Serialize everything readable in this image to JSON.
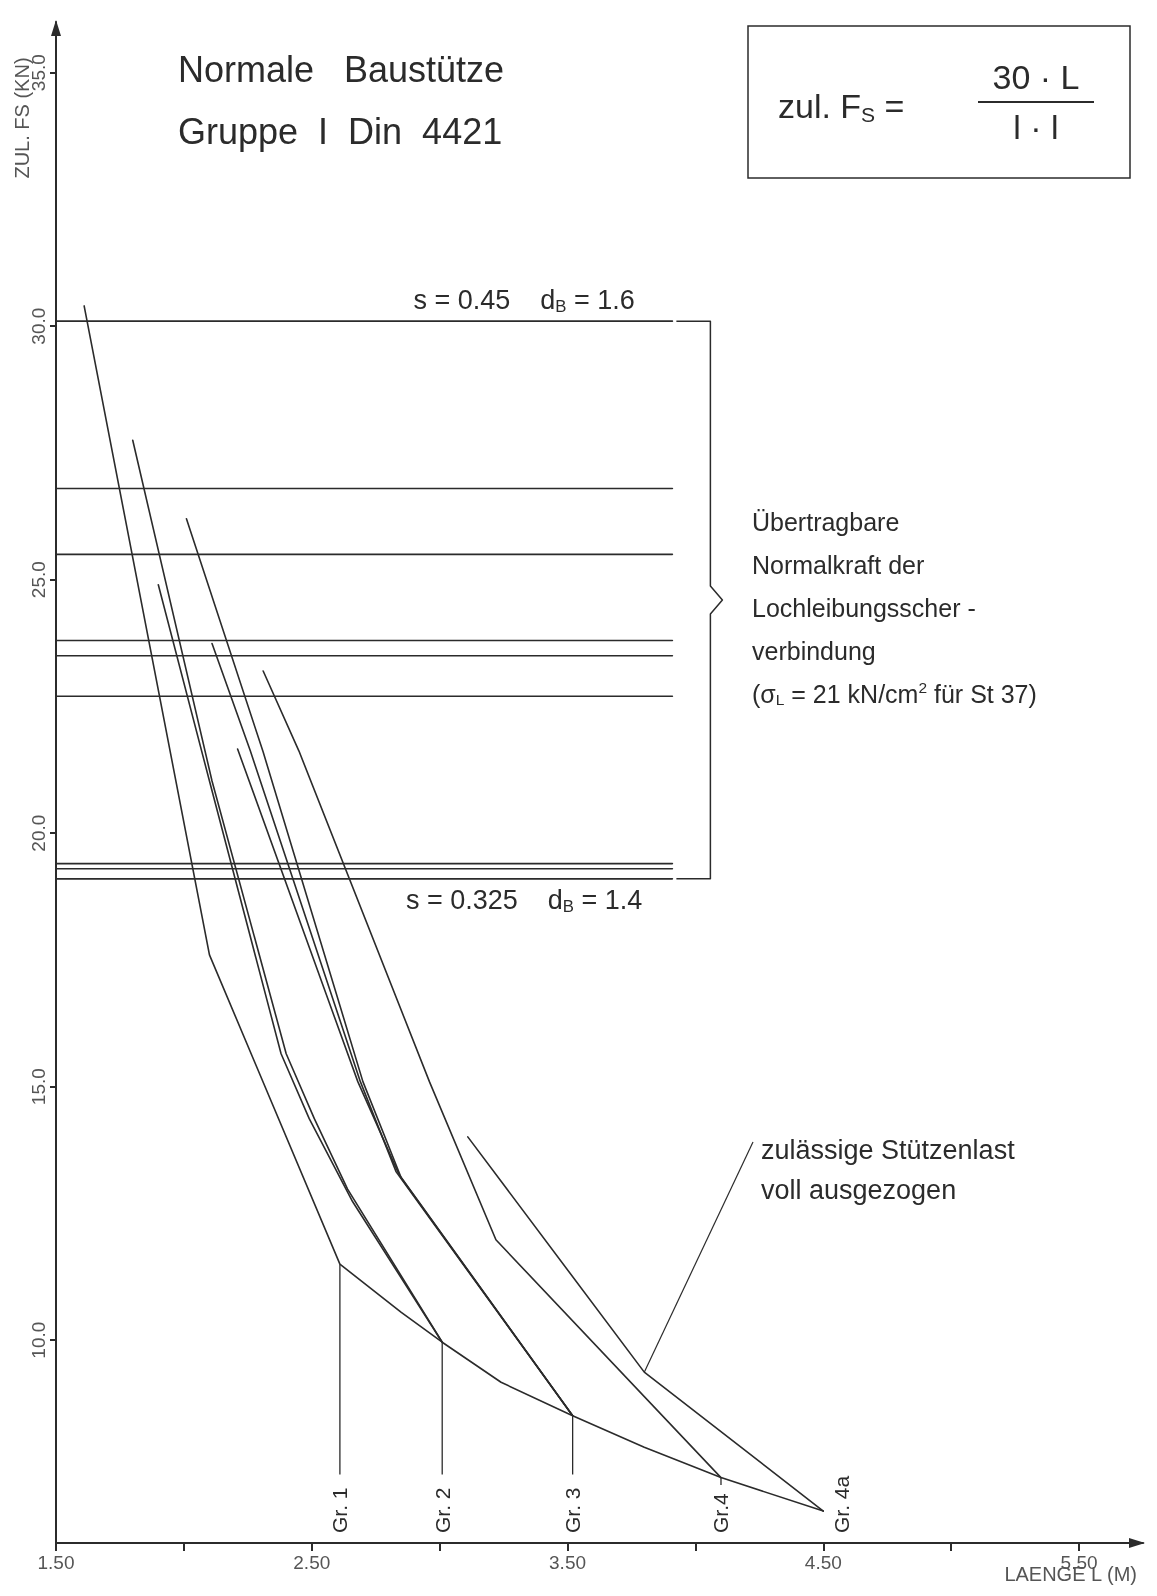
{
  "chart_data": {
    "type": "line",
    "title": "Normale   Baustütze",
    "subtitle": "Gruppe  I  Din  4421",
    "xlabel": "LAENGE L (M)",
    "ylabel": "ZUL. FS (KN)",
    "xlim": [
      1.5,
      5.75
    ],
    "ylim": [
      6,
      36
    ],
    "xticks": [
      {
        "value": 1.5,
        "label": "1.50"
      },
      {
        "value": 2,
        "label": null
      },
      {
        "value": 2.5,
        "label": "2.50"
      },
      {
        "value": 3,
        "label": null
      },
      {
        "value": 3.5,
        "label": "3.50"
      },
      {
        "value": 4,
        "label": null
      },
      {
        "value": 4.5,
        "label": "4.50"
      },
      {
        "value": 5,
        "label": null
      },
      {
        "value": 5.5,
        "label": "5.50"
      }
    ],
    "yticks": [
      {
        "value": 10,
        "label": "10.0"
      },
      {
        "value": 15,
        "label": "15.0"
      },
      {
        "value": 20,
        "label": "20.0"
      },
      {
        "value": 25,
        "label": "25.0"
      },
      {
        "value": 30,
        "label": "30.0"
      },
      {
        "value": 35,
        "label": "35.0"
      }
    ],
    "grid": false,
    "marker": "none",
    "line_style": "solid",
    "series": [
      {
        "color": "#2b2b2b",
        "x": [
          1.61,
          2.1,
          2.61,
          2.85,
          3.01,
          3.24,
          3.52,
          3.8,
          4.1,
          4.5
        ],
        "values": [
          30.4,
          17.6,
          11.5,
          10.55,
          9.96,
          9.17,
          8.51,
          7.89,
          7.29,
          6.63
        ]
      },
      {
        "color": "#2b2b2b",
        "x": [
          1.8,
          2.11,
          2.4,
          2.51,
          2.64,
          3.01
        ],
        "values": [
          27.75,
          21.03,
          15.65,
          14.37,
          12.98,
          9.96
        ]
      },
      {
        "color": "#2b2b2b",
        "x": [
          1.9,
          2.1,
          2.38,
          2.49,
          2.66,
          3.01
        ],
        "values": [
          24.9,
          21.03,
          15.65,
          14.37,
          12.73,
          9.96
        ]
      },
      {
        "color": "#2b2b2b",
        "x": [
          2.01,
          2.31,
          2.7,
          2.85,
          3.52
        ],
        "values": [
          26.2,
          21.6,
          15.1,
          13.2,
          8.51
        ]
      },
      {
        "color": "#2b2b2b",
        "x": [
          2.11,
          2.26,
          2.69,
          2.83,
          3.52
        ],
        "values": [
          23.74,
          21.62,
          15.1,
          13.32,
          8.51
        ]
      },
      {
        "color": "#2b2b2b",
        "x": [
          2.21,
          2.68,
          2.84,
          3.52
        ],
        "values": [
          21.66,
          15.1,
          13.28,
          8.51
        ]
      },
      {
        "color": "#2b2b2b",
        "x": [
          2.31,
          2.45,
          2.96,
          3.22,
          4.1
        ],
        "values": [
          23.2,
          21.62,
          15.1,
          11.98,
          7.29
        ]
      },
      {
        "color": "#2b2b2b",
        "x": [
          3.11,
          3.8,
          4.5
        ],
        "values": [
          14.01,
          9.37,
          6.63
        ]
      },
      {
        "color": "#2b2b2b",
        "x": [
          1.5,
          3.91
        ],
        "values": [
          30.1,
          30.1
        ]
      },
      {
        "color": "#2b2b2b",
        "x": [
          1.5,
          3.91
        ],
        "values": [
          26.8,
          26.8
        ]
      },
      {
        "color": "#2b2b2b",
        "x": [
          1.5,
          3.91
        ],
        "values": [
          25.5,
          25.5
        ]
      },
      {
        "color": "#2b2b2b",
        "x": [
          1.5,
          3.91
        ],
        "values": [
          23.8,
          23.8
        ]
      },
      {
        "color": "#2b2b2b",
        "x": [
          1.5,
          3.91
        ],
        "values": [
          23.5,
          23.5
        ]
      },
      {
        "color": "#2b2b2b",
        "x": [
          1.5,
          3.91
        ],
        "values": [
          22.7,
          22.7
        ]
      },
      {
        "color": "#2b2b2b",
        "x": [
          1.5,
          3.91
        ],
        "values": [
          19.4,
          19.4
        ]
      },
      {
        "color": "#2b2b2b",
        "x": [
          1.5,
          3.91
        ],
        "values": [
          19.3,
          19.3
        ]
      },
      {
        "color": "#2b2b2b",
        "x": [
          1.5,
          3.91
        ],
        "values": [
          19.1,
          19.1
        ]
      }
    ],
    "annotations": [
      "zul. F$_{S}$ =",
      "30 · L",
      "l · l",
      "Übertragbare\nNormalkraft der\nLochleibungsscher -\nverbindung\n(σ$_{L}$ = 21 kN/cm$^{2}$ für St 37)",
      {
        "text": "s = 0.45    d$_{B}$ = 1.6",
        "x": 3.33,
        "y": 30.1
      },
      {
        "text": "s = 0.325    d$_{B}$ = 1.4",
        "x": 3.33,
        "y": 19.1
      },
      {
        "text": "Gr. 1",
        "x": 2.61,
        "y": 11.5
      },
      {
        "text": "Gr. 2",
        "x": 3.01,
        "y": 9.96
      },
      {
        "text": "Gr. 3",
        "x": 3.52,
        "y": 8.51
      },
      {
        "text": "Gr.4",
        "x": 4.1,
        "y": 7.29
      },
      {
        "text": "Gr. 4a",
        "x": 4.5,
        "y": 6.63
      },
      {
        "text": "zulässige Stützenlast\nvoll ausgezogen",
        "x": 3.8,
        "y": 9.37
      }
    ]
  }
}
